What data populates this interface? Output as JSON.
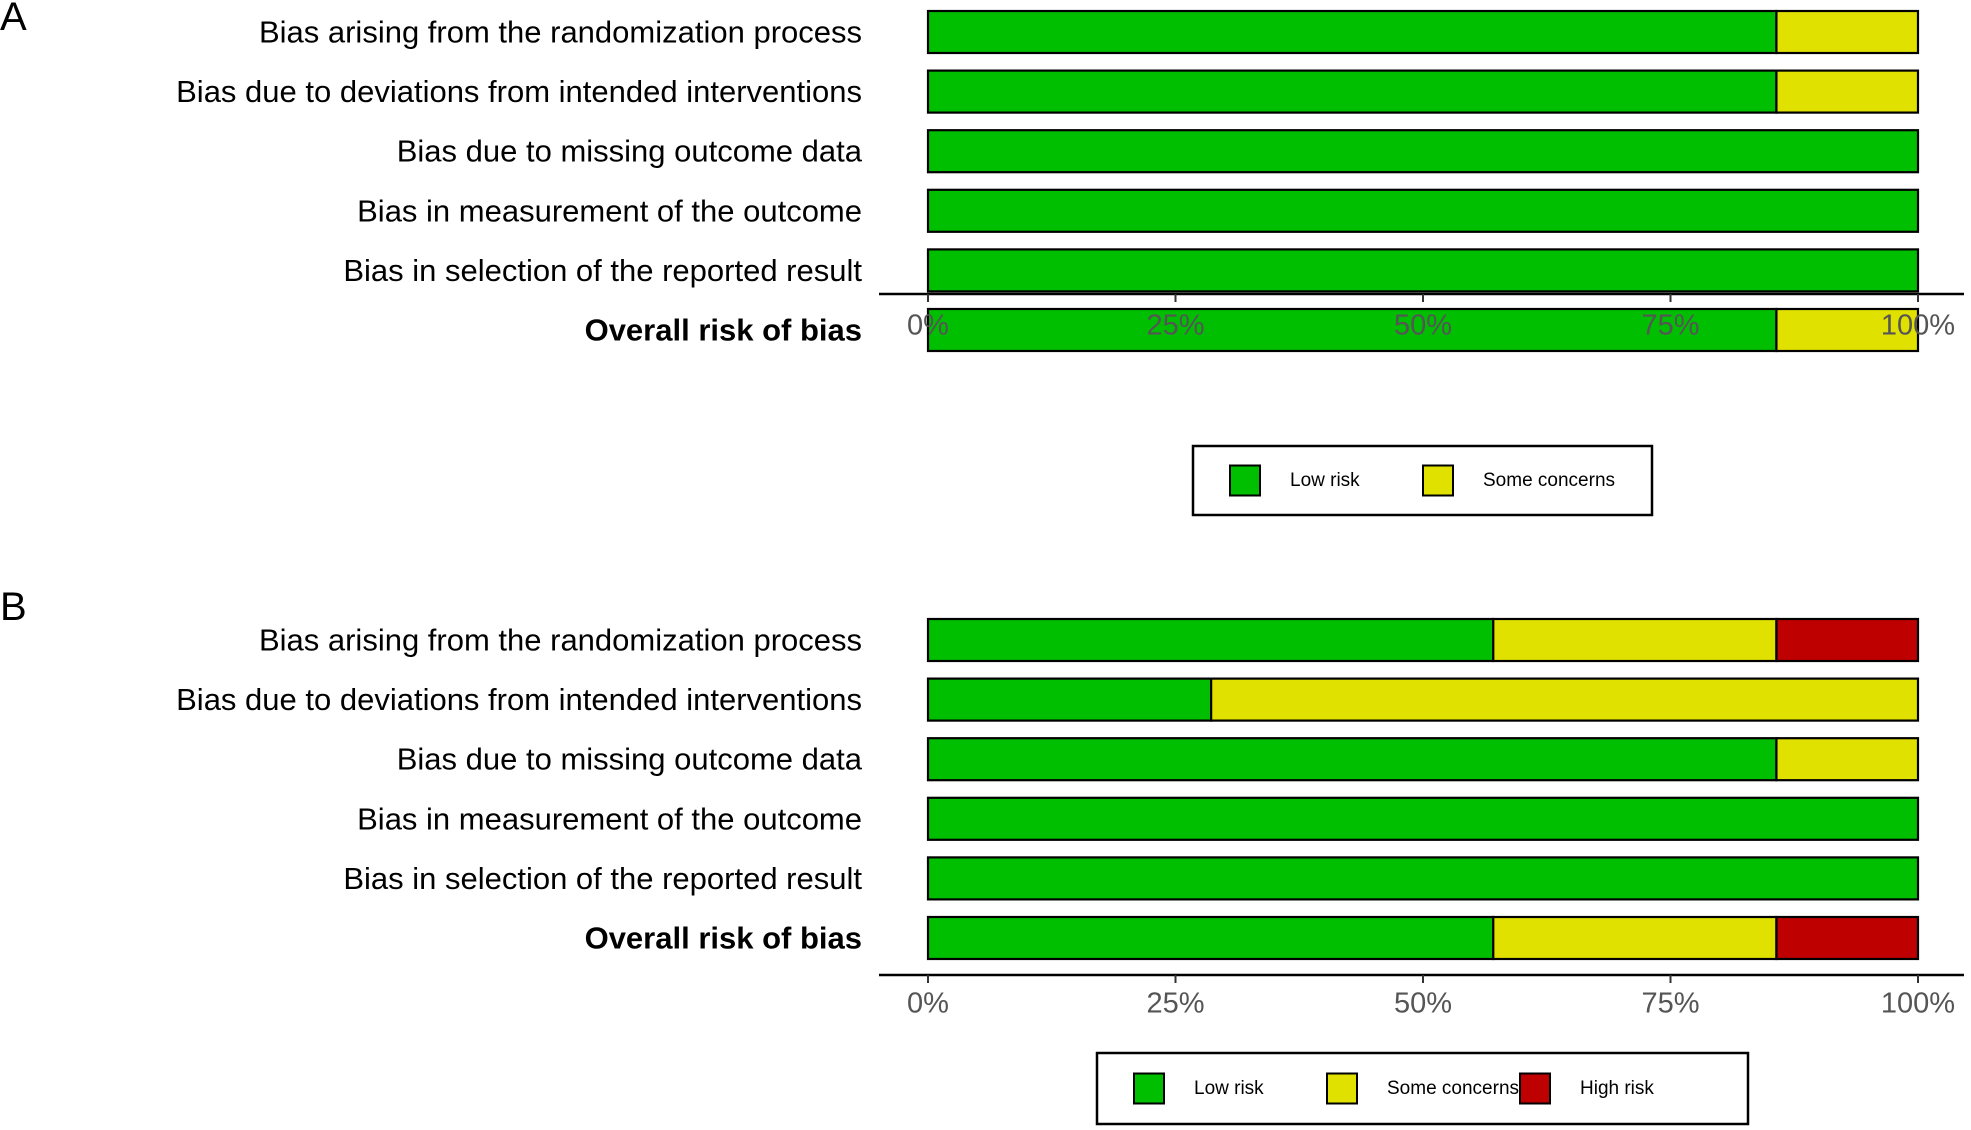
{
  "chart_data": [
    {
      "type": "bar",
      "orientation": "horizontal",
      "stacked": true,
      "panel_label": "A",
      "categories": [
        "Bias arising from the randomization process",
        "Bias due to deviations from intended interventions",
        "Bias due to missing outcome data",
        "Bias in measurement of the outcome",
        "Bias in selection of the reported result",
        "Overall risk of bias"
      ],
      "bold_categories": [
        "Overall risk of bias"
      ],
      "series": [
        {
          "name": "Low risk",
          "color": "#00BF00",
          "values": [
            85.7,
            85.7,
            100,
            100,
            100,
            85.7
          ]
        },
        {
          "name": "Some concerns",
          "color": "#E1E100",
          "values": [
            14.3,
            14.3,
            0,
            0,
            0,
            14.3
          ]
        }
      ],
      "xlim": [
        0,
        100
      ],
      "xticks": [
        "0%",
        "25%",
        "50%",
        "75%",
        "100%"
      ],
      "legend": [
        "Low risk",
        "Some concerns"
      ],
      "legend_position": "bottom",
      "grid": false
    },
    {
      "type": "bar",
      "orientation": "horizontal",
      "stacked": true,
      "panel_label": "B",
      "categories": [
        "Bias arising from the randomization process",
        "Bias due to deviations from intended interventions",
        "Bias due to missing outcome data",
        "Bias in measurement of the outcome",
        "Bias in selection of the reported result",
        "Overall risk of bias"
      ],
      "bold_categories": [
        "Overall risk of bias"
      ],
      "series": [
        {
          "name": "Low risk",
          "color": "#00BF00",
          "values": [
            57.1,
            28.6,
            85.7,
            100,
            100,
            57.1
          ]
        },
        {
          "name": "Some concerns",
          "color": "#E1E100",
          "values": [
            28.6,
            71.4,
            14.3,
            0,
            0,
            28.6
          ]
        },
        {
          "name": "High risk",
          "color": "#BF0000",
          "values": [
            14.3,
            0,
            0,
            0,
            0,
            14.3
          ]
        }
      ],
      "xlim": [
        0,
        100
      ],
      "xticks": [
        "0%",
        "25%",
        "50%",
        "75%",
        "100%"
      ],
      "legend": [
        "Low risk",
        "Some concerns",
        "High risk"
      ],
      "legend_position": "bottom",
      "grid": false
    }
  ]
}
